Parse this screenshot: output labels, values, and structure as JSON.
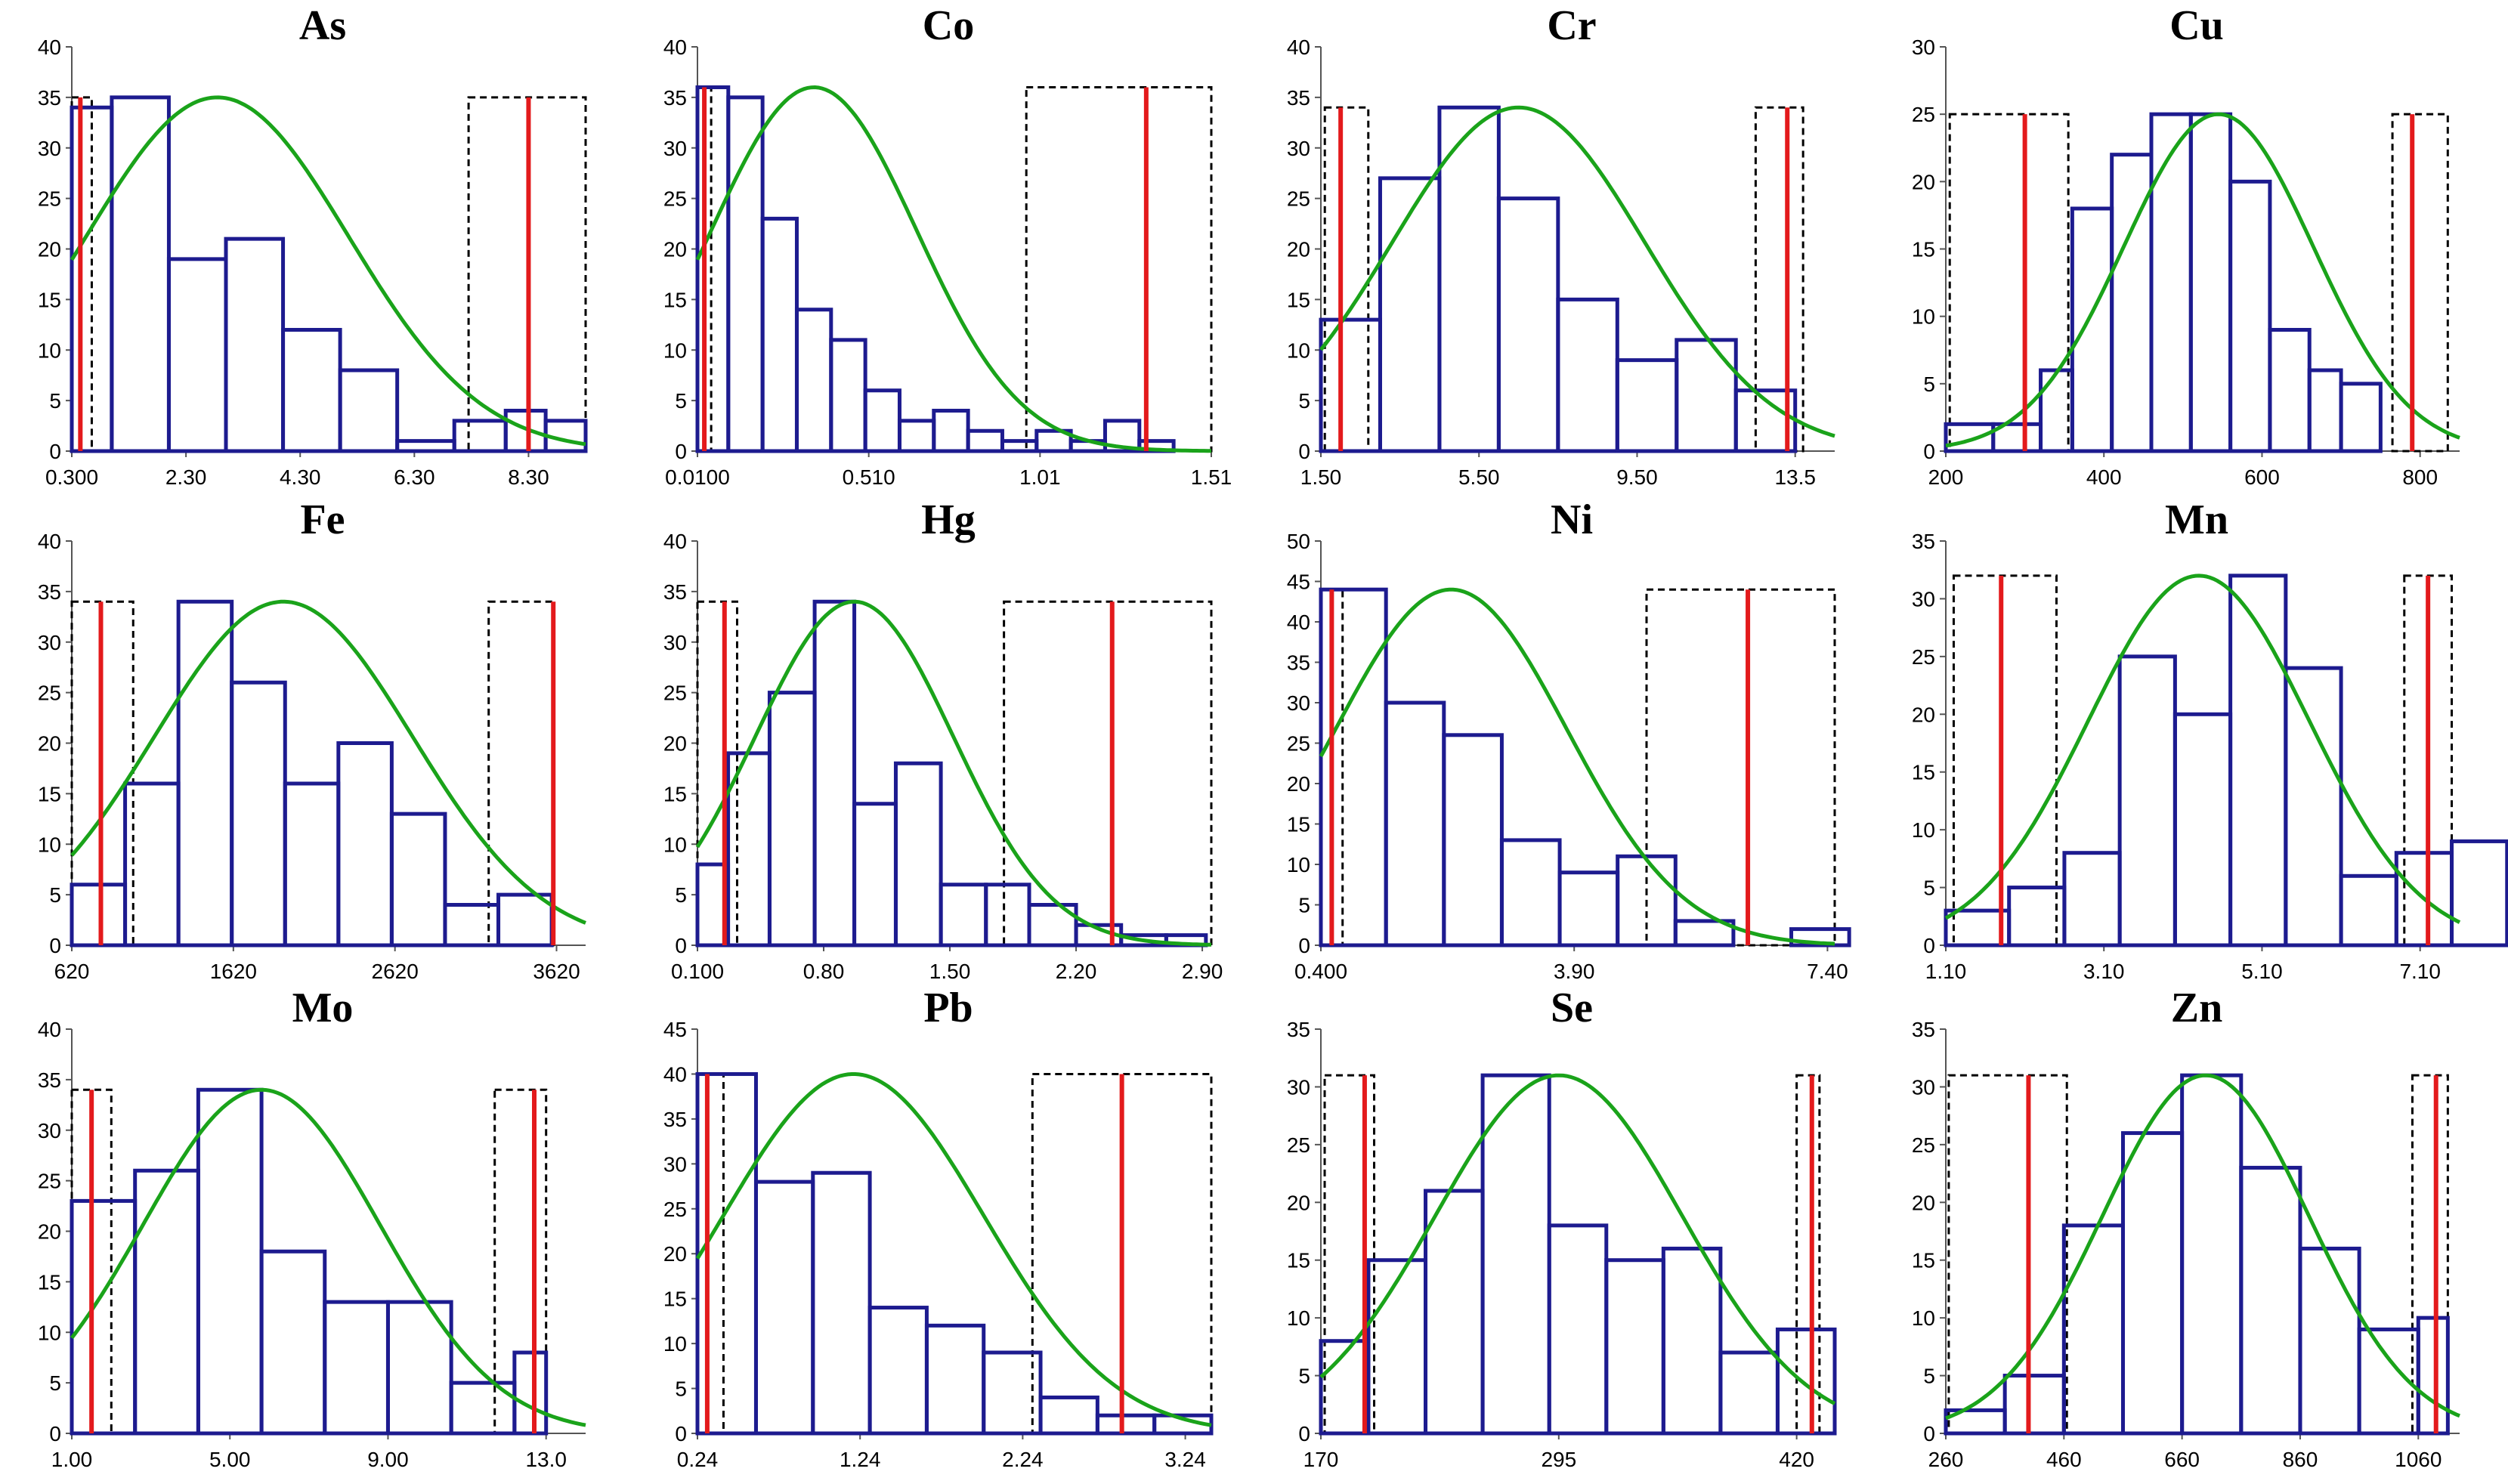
{
  "chart_data": [
    {
      "type": "bar",
      "title": "As",
      "x_ticks": [
        "0.300",
        "2.30",
        "4.30",
        "6.30",
        "8.30"
      ],
      "x_tick_values": [
        0.3,
        2.3,
        4.3,
        6.3,
        8.3
      ],
      "xlim": [
        0.3,
        9.3
      ],
      "ylim": [
        0,
        40
      ],
      "y_ticks": [
        0,
        5,
        10,
        15,
        20,
        25,
        30,
        35,
        40
      ],
      "bins": [
        [
          0.3,
          1.0,
          34
        ],
        [
          1.0,
          2.0,
          35
        ],
        [
          2.0,
          3.0,
          19
        ],
        [
          3.0,
          4.0,
          21
        ],
        [
          4.0,
          5.0,
          12
        ],
        [
          5.0,
          6.0,
          8
        ],
        [
          6.0,
          7.0,
          1
        ],
        [
          7.0,
          7.9,
          3
        ],
        [
          7.9,
          8.6,
          4
        ],
        [
          8.6,
          9.3,
          3
        ]
      ],
      "normal_curve": {
        "mean": 2.85,
        "sd": 2.3,
        "peak": 35
      },
      "red_lines": [
        0.45,
        8.3
      ],
      "dashed_boxes": [
        [
          0.3,
          0.65,
          35
        ],
        [
          7.25,
          9.3,
          35
        ]
      ]
    },
    {
      "type": "bar",
      "title": "Co",
      "x_ticks": [
        "0.0100",
        "0.510",
        "1.01",
        "1.51"
      ],
      "x_tick_values": [
        0.01,
        0.51,
        1.01,
        1.51
      ],
      "xlim": [
        0.01,
        1.51
      ],
      "ylim": [
        0,
        40
      ],
      "y_ticks": [
        0,
        5,
        10,
        15,
        20,
        25,
        30,
        35,
        40
      ],
      "bins": [
        [
          0.01,
          0.1,
          36
        ],
        [
          0.1,
          0.2,
          35
        ],
        [
          0.2,
          0.3,
          23
        ],
        [
          0.3,
          0.4,
          14
        ],
        [
          0.4,
          0.5,
          11
        ],
        [
          0.5,
          0.6,
          6
        ],
        [
          0.6,
          0.7,
          3
        ],
        [
          0.7,
          0.8,
          4
        ],
        [
          0.8,
          0.9,
          2
        ],
        [
          0.9,
          1.0,
          1
        ],
        [
          1.0,
          1.1,
          2
        ],
        [
          1.1,
          1.2,
          1
        ],
        [
          1.2,
          1.3,
          3
        ],
        [
          1.3,
          1.4,
          1
        ]
      ],
      "normal_curve": {
        "mean": 0.35,
        "sd": 0.3,
        "peak": 36
      },
      "red_lines": [
        0.03,
        1.32
      ],
      "dashed_boxes": [
        [
          0.01,
          0.05,
          36
        ],
        [
          0.97,
          1.51,
          36
        ]
      ]
    },
    {
      "type": "bar",
      "title": "Cr",
      "x_ticks": [
        "1.50",
        "5.50",
        "9.50",
        "13.5"
      ],
      "x_tick_values": [
        1.5,
        5.5,
        9.5,
        13.5
      ],
      "xlim": [
        1.5,
        14.5
      ],
      "ylim": [
        0,
        40
      ],
      "y_ticks": [
        0,
        5,
        10,
        15,
        20,
        25,
        30,
        35,
        40
      ],
      "bins": [
        [
          1.5,
          3.0,
          13
        ],
        [
          3.0,
          4.5,
          27
        ],
        [
          4.5,
          6.0,
          34
        ],
        [
          6.0,
          7.5,
          25
        ],
        [
          7.5,
          9.0,
          15
        ],
        [
          9.0,
          10.5,
          9
        ],
        [
          10.5,
          12.0,
          11
        ],
        [
          12.0,
          13.5,
          6
        ]
      ],
      "normal_curve": {
        "mean": 6.5,
        "sd": 3.2,
        "peak": 34
      },
      "red_lines": [
        2.0,
        13.3
      ],
      "dashed_boxes": [
        [
          1.6,
          2.7,
          34
        ],
        [
          12.5,
          13.7,
          34
        ]
      ]
    },
    {
      "type": "bar",
      "title": "Cu",
      "x_ticks": [
        "200",
        "400",
        "600",
        "800"
      ],
      "x_tick_values": [
        200,
        400,
        600,
        800
      ],
      "xlim": [
        200,
        850
      ],
      "ylim": [
        0,
        30
      ],
      "y_ticks": [
        0,
        5,
        10,
        15,
        20,
        25,
        30
      ],
      "bins": [
        [
          200,
          260,
          2
        ],
        [
          260,
          320,
          2
        ],
        [
          320,
          360,
          6
        ],
        [
          360,
          410,
          18
        ],
        [
          410,
          460,
          22
        ],
        [
          460,
          510,
          25
        ],
        [
          510,
          560,
          25
        ],
        [
          560,
          610,
          20
        ],
        [
          610,
          660,
          9
        ],
        [
          660,
          700,
          6
        ],
        [
          700,
          750,
          5
        ]
      ],
      "normal_curve": {
        "mean": 545,
        "sd": 120,
        "peak": 25
      },
      "red_lines": [
        300,
        790
      ],
      "dashed_boxes": [
        [
          205,
          355,
          25
        ],
        [
          765,
          835,
          25
        ]
      ]
    },
    {
      "type": "bar",
      "title": "Fe",
      "x_ticks": [
        "620",
        "1620",
        "2620",
        "3620"
      ],
      "x_tick_values": [
        620,
        1620,
        2620,
        3620
      ],
      "xlim": [
        620,
        3800
      ],
      "ylim": [
        0,
        40
      ],
      "y_ticks": [
        0,
        5,
        10,
        15,
        20,
        25,
        30,
        35,
        40
      ],
      "bins": [
        [
          620,
          950,
          6
        ],
        [
          950,
          1280,
          16
        ],
        [
          1280,
          1610,
          34
        ],
        [
          1610,
          1940,
          26
        ],
        [
          1940,
          2270,
          16
        ],
        [
          2270,
          2600,
          20
        ],
        [
          2600,
          2930,
          13
        ],
        [
          2930,
          3260,
          4
        ],
        [
          3260,
          3590,
          5
        ]
      ],
      "normal_curve": {
        "mean": 1930,
        "sd": 800,
        "peak": 34
      },
      "red_lines": [
        800,
        3600
      ],
      "dashed_boxes": [
        [
          620,
          1000,
          34
        ],
        [
          3200,
          3600,
          34
        ]
      ]
    },
    {
      "type": "bar",
      "title": "Hg",
      "x_ticks": [
        "0.100",
        "0.80",
        "1.50",
        "2.20",
        "2.90"
      ],
      "x_tick_values": [
        0.1,
        0.8,
        1.5,
        2.2,
        2.9
      ],
      "xlim": [
        0.1,
        2.95
      ],
      "ylim": [
        0,
        40
      ],
      "y_ticks": [
        0,
        5,
        10,
        15,
        20,
        25,
        30,
        35,
        40
      ],
      "bins": [
        [
          0.1,
          0.27,
          8
        ],
        [
          0.27,
          0.5,
          19
        ],
        [
          0.5,
          0.75,
          25
        ],
        [
          0.75,
          0.97,
          34
        ],
        [
          0.97,
          1.2,
          14
        ],
        [
          1.2,
          1.45,
          18
        ],
        [
          1.45,
          1.7,
          6
        ],
        [
          1.7,
          1.94,
          6
        ],
        [
          1.94,
          2.2,
          4
        ],
        [
          2.2,
          2.45,
          2
        ],
        [
          2.45,
          2.7,
          1
        ],
        [
          2.7,
          2.92,
          1
        ]
      ],
      "normal_curve": {
        "mean": 0.97,
        "sd": 0.55,
        "peak": 34
      },
      "red_lines": [
        0.25,
        2.4
      ],
      "dashed_boxes": [
        [
          0.1,
          0.32,
          34
        ],
        [
          1.8,
          2.95,
          34
        ]
      ]
    },
    {
      "type": "bar",
      "title": "Ni",
      "x_ticks": [
        "0.400",
        "3.90",
        "7.40"
      ],
      "x_tick_values": [
        0.4,
        3.9,
        7.4
      ],
      "xlim": [
        0.4,
        7.5
      ],
      "ylim": [
        0,
        50
      ],
      "y_ticks": [
        0,
        5,
        10,
        15,
        20,
        25,
        30,
        35,
        40,
        45,
        50
      ],
      "bins": [
        [
          0.4,
          1.3,
          44
        ],
        [
          1.3,
          2.1,
          30
        ],
        [
          2.1,
          2.9,
          26
        ],
        [
          2.9,
          3.7,
          13
        ],
        [
          3.7,
          4.5,
          9
        ],
        [
          4.5,
          5.3,
          11
        ],
        [
          5.3,
          6.1,
          3
        ],
        [
          6.1,
          6.9,
          0
        ],
        [
          6.9,
          7.7,
          2
        ]
      ],
      "normal_curve": {
        "mean": 2.2,
        "sd": 1.6,
        "peak": 44
      },
      "red_lines": [
        0.55,
        6.3
      ],
      "dashed_boxes": [
        [
          0.4,
          0.7,
          44
        ],
        [
          4.9,
          7.5,
          44
        ]
      ]
    },
    {
      "type": "bar",
      "title": "Mn",
      "x_ticks": [
        "1.10",
        "3.10",
        "5.10",
        "7.10"
      ],
      "x_tick_values": [
        1.1,
        3.1,
        5.1,
        7.1
      ],
      "xlim": [
        1.1,
        7.6
      ],
      "ylim": [
        0,
        35
      ],
      "y_ticks": [
        0,
        5,
        10,
        15,
        20,
        25,
        30,
        35
      ],
      "bins": [
        [
          1.1,
          1.9,
          3
        ],
        [
          1.9,
          2.6,
          5
        ],
        [
          2.6,
          3.3,
          8
        ],
        [
          3.3,
          4.0,
          25
        ],
        [
          4.0,
          4.7,
          20
        ],
        [
          4.7,
          5.4,
          32
        ],
        [
          5.4,
          6.1,
          24
        ],
        [
          6.1,
          6.8,
          6
        ],
        [
          6.8,
          7.5,
          8
        ],
        [
          7.5,
          8.2,
          9
        ]
      ],
      "normal_curve": {
        "mean": 4.3,
        "sd": 1.4,
        "peak": 32
      },
      "red_lines": [
        1.8,
        7.2
      ],
      "dashed_boxes": [
        [
          1.2,
          2.5,
          32
        ],
        [
          6.9,
          7.5,
          32
        ]
      ]
    },
    {
      "type": "bar",
      "title": "Mo",
      "x_ticks": [
        "1.00",
        "5.00",
        "9.00",
        "13.0"
      ],
      "x_tick_values": [
        1,
        5,
        9,
        13
      ],
      "xlim": [
        1.0,
        14.0
      ],
      "ylim": [
        0,
        40
      ],
      "y_ticks": [
        0,
        5,
        10,
        15,
        20,
        25,
        30,
        35,
        40
      ],
      "bins": [
        [
          1.0,
          2.6,
          23
        ],
        [
          2.6,
          4.2,
          26
        ],
        [
          4.2,
          5.8,
          34
        ],
        [
          5.8,
          7.4,
          18
        ],
        [
          7.4,
          9.0,
          13
        ],
        [
          9.0,
          10.6,
          13
        ],
        [
          10.6,
          12.2,
          5
        ],
        [
          12.2,
          13.0,
          8
        ]
      ],
      "normal_curve": {
        "mean": 5.8,
        "sd": 3.0,
        "peak": 34
      },
      "red_lines": [
        1.5,
        12.7
      ],
      "dashed_boxes": [
        [
          1.0,
          2.0,
          34
        ],
        [
          11.7,
          13.0,
          34
        ]
      ]
    },
    {
      "type": "bar",
      "title": "Pb",
      "x_ticks": [
        "0.24",
        "1.24",
        "2.24",
        "3.24"
      ],
      "x_tick_values": [
        0.24,
        1.24,
        2.24,
        3.24
      ],
      "xlim": [
        0.24,
        3.4
      ],
      "ylim": [
        0,
        45
      ],
      "y_ticks": [
        0,
        5,
        10,
        15,
        20,
        25,
        30,
        35,
        40,
        45
      ],
      "bins": [
        [
          0.24,
          0.6,
          40
        ],
        [
          0.6,
          0.95,
          28
        ],
        [
          0.95,
          1.3,
          29
        ],
        [
          1.3,
          1.65,
          14
        ],
        [
          1.65,
          2.0,
          12
        ],
        [
          2.0,
          2.35,
          9
        ],
        [
          2.35,
          2.7,
          4
        ],
        [
          2.7,
          3.05,
          2
        ],
        [
          3.05,
          3.4,
          2
        ]
      ],
      "normal_curve": {
        "mean": 1.2,
        "sd": 0.8,
        "peak": 40
      },
      "red_lines": [
        0.3,
        2.85
      ],
      "dashed_boxes": [
        [
          0.24,
          0.4,
          40
        ],
        [
          2.3,
          3.4,
          40
        ]
      ]
    },
    {
      "type": "bar",
      "title": "Se",
      "x_ticks": [
        "170",
        "295",
        "420"
      ],
      "x_tick_values": [
        170,
        295,
        420
      ],
      "xlim": [
        170,
        440
      ],
      "ylim": [
        0,
        35
      ],
      "y_ticks": [
        0,
        5,
        10,
        15,
        20,
        25,
        30,
        35
      ],
      "bins": [
        [
          170,
          195,
          8
        ],
        [
          195,
          225,
          15
        ],
        [
          225,
          255,
          21
        ],
        [
          255,
          290,
          31
        ],
        [
          290,
          320,
          18
        ],
        [
          320,
          350,
          15
        ],
        [
          350,
          380,
          16
        ],
        [
          380,
          410,
          7
        ],
        [
          410,
          440,
          9
        ]
      ],
      "normal_curve": {
        "mean": 295,
        "sd": 65,
        "peak": 31
      },
      "red_lines": [
        193,
        428
      ],
      "dashed_boxes": [
        [
          172,
          198,
          31
        ],
        [
          420,
          432,
          31
        ]
      ]
    },
    {
      "type": "bar",
      "title": "Zn",
      "x_ticks": [
        "260",
        "460",
        "660",
        "860",
        "1060"
      ],
      "x_tick_values": [
        260,
        460,
        660,
        860,
        1060
      ],
      "xlim": [
        260,
        1130
      ],
      "ylim": [
        0,
        35
      ],
      "y_ticks": [
        0,
        5,
        10,
        15,
        20,
        25,
        30,
        35
      ],
      "bins": [
        [
          260,
          360,
          2
        ],
        [
          360,
          460,
          5
        ],
        [
          460,
          560,
          18
        ],
        [
          560,
          660,
          26
        ],
        [
          660,
          760,
          31
        ],
        [
          760,
          860,
          23
        ],
        [
          860,
          960,
          16
        ],
        [
          960,
          1060,
          9
        ],
        [
          1060,
          1110,
          10
        ]
      ],
      "normal_curve": {
        "mean": 700,
        "sd": 175,
        "peak": 31
      },
      "red_lines": [
        400,
        1090
      ],
      "dashed_boxes": [
        [
          265,
          465,
          31
        ],
        [
          1050,
          1110,
          31
        ]
      ]
    }
  ],
  "colors": {
    "bars": "#1d1b8f",
    "curve": "#1aa31a",
    "red_line": "#e31a1c",
    "dashed": "#000000",
    "axis": "#555555"
  }
}
